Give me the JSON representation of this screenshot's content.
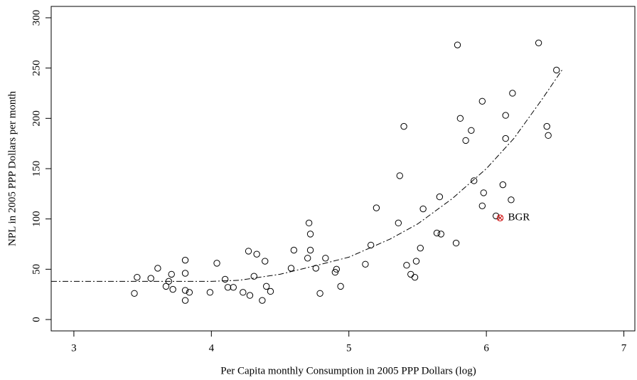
{
  "chart_data": {
    "type": "scatter",
    "x_label": "Per Capita monthly Consumption in 2005 PPP Dollars (log)",
    "y_label": "NPL in 2005 PPP Dollars per month",
    "xlim": [
      2.835,
      7.08
    ],
    "ylim": [
      -11.3,
      311.3
    ],
    "xticks": [
      3,
      4,
      5,
      6,
      7
    ],
    "yticks": [
      0,
      50,
      100,
      150,
      200,
      250,
      300
    ],
    "series": [
      {
        "type": "scatter",
        "marker": "circle",
        "color": "#000000",
        "x": [
          3.44,
          3.46,
          3.56,
          3.61,
          3.67,
          3.69,
          3.71,
          3.72,
          3.81,
          3.81,
          3.81,
          3.81,
          3.84,
          3.99,
          4.04,
          4.1,
          4.12,
          4.16,
          4.23,
          4.27,
          4.28,
          4.31,
          4.33,
          4.37,
          4.39,
          4.4,
          4.43,
          4.58,
          4.6,
          4.7,
          4.71,
          4.72,
          4.72,
          4.76,
          4.79,
          4.83,
          4.9,
          4.91,
          4.94,
          5.12,
          5.16,
          5.2,
          5.36,
          5.37,
          5.4,
          5.42,
          5.45,
          5.48,
          5.49,
          5.52,
          5.54,
          5.64,
          5.67,
          5.66,
          5.78,
          5.79,
          5.81,
          5.85,
          5.89,
          5.91,
          5.97,
          5.98,
          5.97,
          6.07,
          6.12,
          6.14,
          6.14,
          6.18,
          6.19,
          6.38,
          6.44,
          6.45,
          6.51
        ],
        "values": [
          26,
          42,
          41,
          51,
          33,
          38,
          45,
          30,
          46,
          59,
          29,
          19,
          27,
          27,
          56,
          40,
          32,
          32,
          27,
          68,
          24,
          43,
          65,
          19,
          58,
          33,
          28,
          51,
          69,
          61,
          96,
          85,
          69,
          51,
          26,
          61,
          47,
          50,
          33,
          55,
          74,
          111,
          96,
          143,
          192,
          54,
          45,
          42,
          58,
          71,
          110,
          86,
          85,
          122,
          76,
          273,
          200,
          178,
          188,
          138,
          217,
          126,
          113,
          103,
          134,
          203,
          180,
          119,
          225,
          275,
          192,
          183,
          248
        ]
      },
      {
        "type": "line",
        "dash": "8,3,2,3",
        "color": "#000000",
        "x": [
          2.835,
          3.5,
          4.0,
          4.2,
          4.5,
          4.8,
          5.0,
          5.3,
          5.5,
          5.75,
          6.0,
          6.2,
          6.4,
          6.55
        ],
        "values": [
          38,
          38,
          38,
          39,
          45,
          55,
          62,
          80,
          95,
          120,
          150,
          180,
          218,
          248
        ]
      }
    ],
    "annotations": [
      {
        "text": "BGR",
        "x": 6.1,
        "y": 101,
        "color": "#cc0000"
      }
    ],
    "grid": false
  }
}
